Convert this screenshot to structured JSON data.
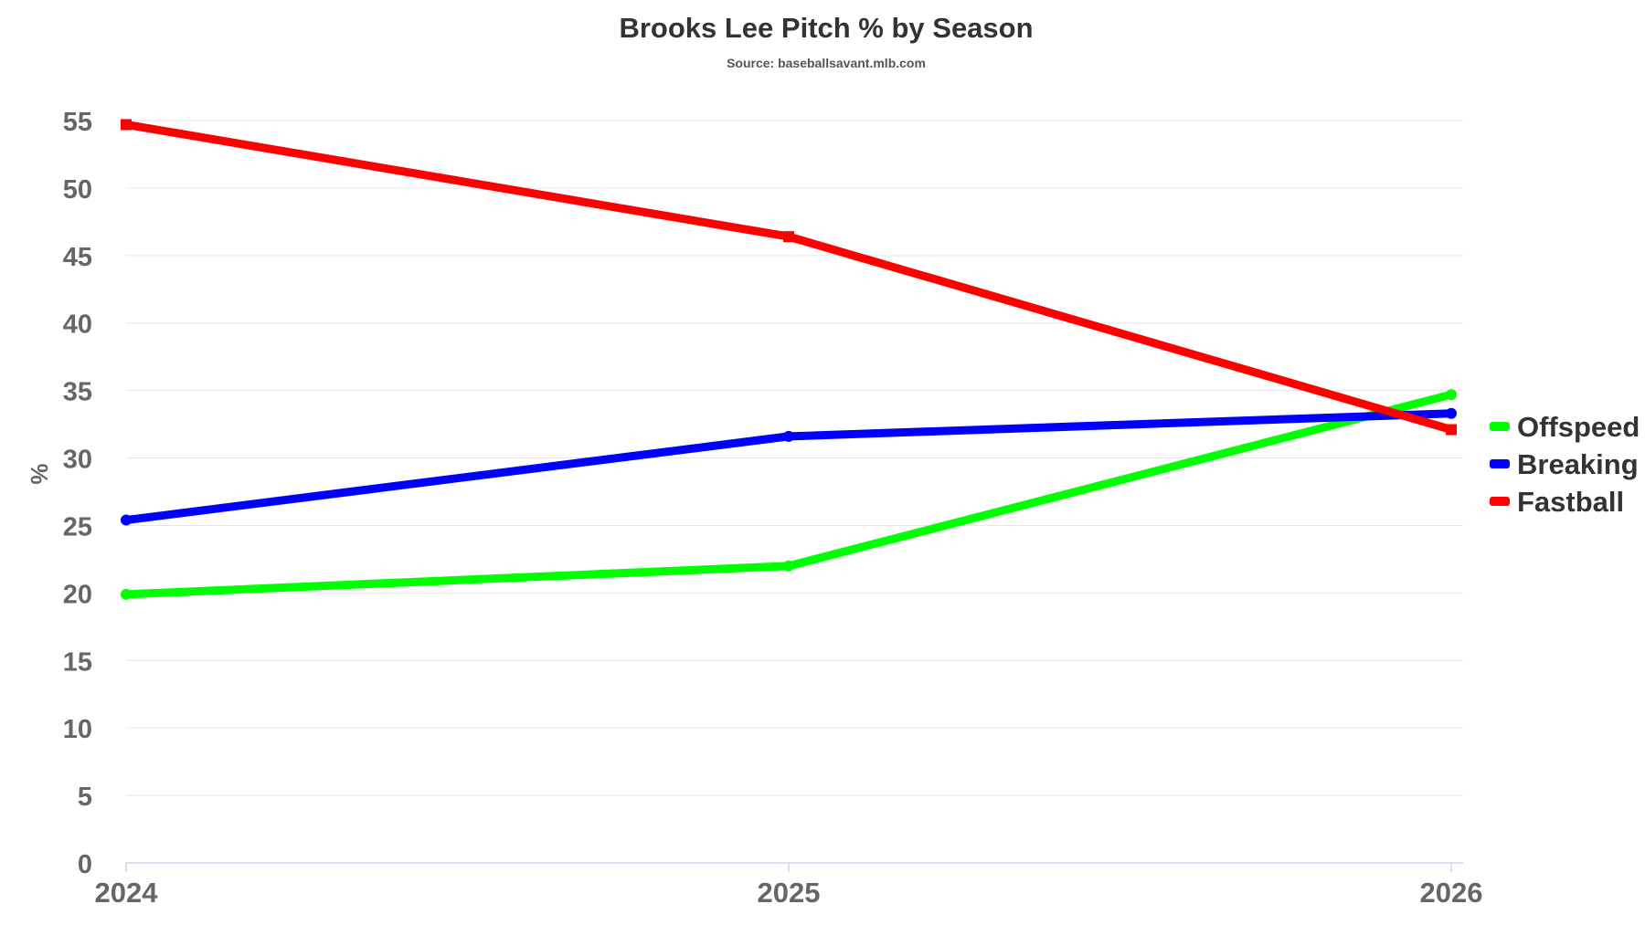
{
  "chart_data": {
    "type": "line",
    "title": "Brooks Lee Pitch % by Season",
    "subtitle": "Source: baseballsavant.mlb.com",
    "xlabel": "",
    "ylabel": "%",
    "x": [
      "2024",
      "2025",
      "2026"
    ],
    "ylim": [
      0,
      55
    ],
    "y_ticks": [
      0,
      5,
      10,
      15,
      20,
      25,
      30,
      35,
      40,
      45,
      50,
      55
    ],
    "grid": true,
    "legend_position": "right",
    "series": [
      {
        "name": "Offspeed",
        "color": "#00ff00",
        "values": [
          19.9,
          22.0,
          34.7
        ]
      },
      {
        "name": "Breaking",
        "color": "#0000ff",
        "values": [
          25.4,
          31.6,
          33.3
        ]
      },
      {
        "name": "Fastball",
        "color": "#ff0000",
        "values": [
          54.7,
          46.4,
          32.1
        ]
      }
    ]
  }
}
